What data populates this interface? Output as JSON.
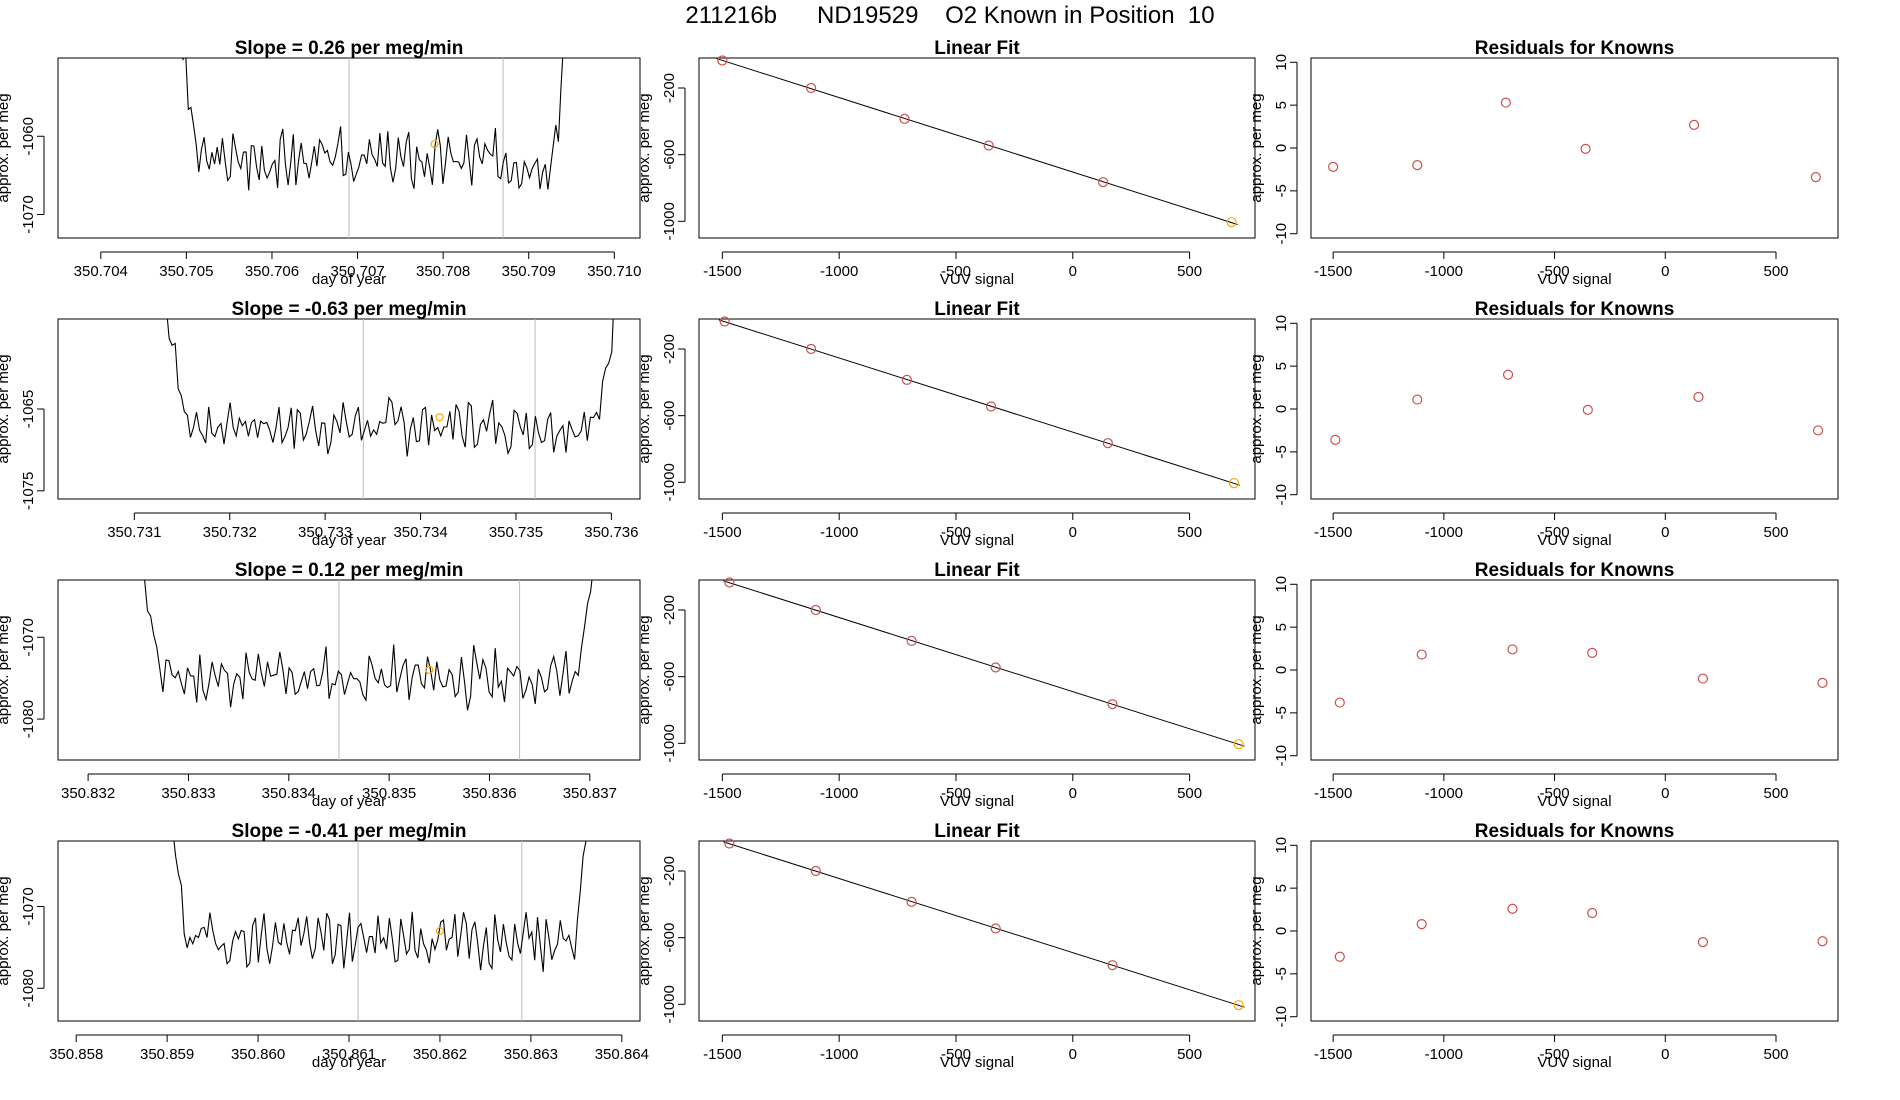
{
  "page": {
    "title": "211216b      ND19529    O2 Known in Position  10"
  },
  "chart_data": [
    {
      "type": "line",
      "title": "Slope =  0.26  per meg/min",
      "xlabel": "day of year",
      "ylabel": "approx. per meg",
      "xlim": [
        350.7035,
        350.7103
      ],
      "ylim": [
        -1073,
        -1050
      ],
      "xticks": [
        "350.704",
        "350.705",
        "350.706",
        "350.707",
        "350.708",
        "350.709",
        "350.710"
      ],
      "yticks": [
        "-1060",
        "-1070"
      ],
      "ytick_values": [
        -1060,
        -1070
      ],
      "start_x": 350.7049,
      "end_x": 350.7095,
      "vlines": [
        350.7069,
        350.7087
      ],
      "seed": 3,
      "base": -1063,
      "amp": 3.2,
      "spike_top": -1049,
      "marker": {
        "x": 350.7079,
        "y": -1061,
        "color": "#ffa500"
      },
      "line_color": "#000000"
    },
    {
      "type": "scatter",
      "title": "Linear Fit",
      "xlabel": "VUV signal",
      "ylabel": "approx. per meg",
      "xlim": [
        -1600,
        780
      ],
      "ylim": [
        -1100,
        -20
      ],
      "xticks": [
        "-1500",
        "-1000",
        "-500",
        "0",
        "500"
      ],
      "xtick_values": [
        -1500,
        -1000,
        -500,
        0,
        500
      ],
      "yticks": [
        "-200",
        "-600",
        "-1000"
      ],
      "ytick_values": [
        -200,
        -600,
        -1000
      ],
      "x": [
        -1500,
        -1120,
        -720,
        -360,
        130,
        680
      ],
      "y": [
        -35,
        -200,
        -385,
        -545,
        -765,
        -1005
      ],
      "point_color": "#cd4f4f",
      "last_point_color": "#ffa500",
      "fit_line": true
    },
    {
      "type": "scatter",
      "title": "Residuals for Knowns",
      "xlabel": "VUV signal",
      "ylabel": "approx. per meg",
      "xlim": [
        -1600,
        780
      ],
      "ylim": [
        -10.5,
        10.5
      ],
      "xticks": [
        "-1500",
        "-1000",
        "-500",
        "0",
        "500"
      ],
      "xtick_values": [
        -1500,
        -1000,
        -500,
        0,
        500
      ],
      "yticks": [
        "10",
        "5",
        "0",
        "-5",
        "-10"
      ],
      "ytick_values": [
        10,
        5,
        0,
        -5,
        -10
      ],
      "x": [
        -1500,
        -1120,
        -720,
        -360,
        130,
        680
      ],
      "y": [
        -2.2,
        -2.0,
        5.3,
        -0.1,
        2.7,
        -3.4
      ],
      "point_color": "#cd4f4f"
    },
    {
      "type": "line",
      "title": "Slope =  -0.63  per meg/min",
      "xlabel": "day of year",
      "ylabel": "approx. per meg",
      "xlim": [
        350.7302,
        350.7363
      ],
      "ylim": [
        -1076,
        -1054
      ],
      "xticks": [
        "350.731",
        "350.732",
        "350.733",
        "350.734",
        "350.735",
        "350.736"
      ],
      "yticks": [
        "-1065",
        "-1075"
      ],
      "ytick_values": [
        -1065,
        -1075
      ],
      "start_x": 350.7313,
      "end_x": 350.7361,
      "vlines": [
        350.7334,
        350.7352
      ],
      "seed": 7,
      "base": -1067,
      "amp": 2.8,
      "spike_top": -1053,
      "marker": {
        "x": 350.7342,
        "y": -1066,
        "color": "#ffa500"
      },
      "line_color": "#000000"
    },
    {
      "type": "scatter",
      "title": "Linear Fit",
      "xlabel": "VUV signal",
      "ylabel": "approx. per meg",
      "xlim": [
        -1600,
        780
      ],
      "ylim": [
        -1100,
        -20
      ],
      "xticks": [
        "-1500",
        "-1000",
        "-500",
        "0",
        "500"
      ],
      "xtick_values": [
        -1500,
        -1000,
        -500,
        0,
        500
      ],
      "yticks": [
        "-200",
        "-600",
        "-1000"
      ],
      "ytick_values": [
        -200,
        -600,
        -1000
      ],
      "x": [
        -1490,
        -1120,
        -710,
        -350,
        150,
        690
      ],
      "y": [
        -35,
        -200,
        -385,
        -545,
        -765,
        -1005
      ],
      "point_color": "#cd4f4f",
      "last_point_color": "#ffa500",
      "fit_line": true
    },
    {
      "type": "scatter",
      "title": "Residuals for Knowns",
      "xlabel": "VUV signal",
      "ylabel": "approx. per meg",
      "xlim": [
        -1600,
        780
      ],
      "ylim": [
        -10.5,
        10.5
      ],
      "xticks": [
        "-1500",
        "-1000",
        "-500",
        "0",
        "500"
      ],
      "xtick_values": [
        -1500,
        -1000,
        -500,
        0,
        500
      ],
      "yticks": [
        "10",
        "5",
        "0",
        "-5",
        "-10"
      ],
      "ytick_values": [
        10,
        5,
        0,
        -5,
        -10
      ],
      "x": [
        -1490,
        -1120,
        -710,
        -350,
        150,
        690
      ],
      "y": [
        -3.6,
        1.1,
        4.0,
        -0.1,
        1.4,
        -2.5
      ],
      "point_color": "#cd4f4f"
    },
    {
      "type": "line",
      "title": "Slope =  0.12  per meg/min",
      "xlabel": "day of year",
      "ylabel": "approx. per meg",
      "xlim": [
        350.8317,
        350.8375
      ],
      "ylim": [
        -1085,
        -1063
      ],
      "xticks": [
        "350.832",
        "350.833",
        "350.834",
        "350.835",
        "350.836",
        "350.837"
      ],
      "yticks": [
        "-1070",
        "-1080"
      ],
      "ytick_values": [
        -1070,
        -1080
      ],
      "start_x": 350.8325,
      "end_x": 350.8371,
      "vlines": [
        350.8345,
        350.8363
      ],
      "seed": 11,
      "base": -1075,
      "amp": 3.0,
      "spike_top": -1062,
      "marker": {
        "x": 350.8354,
        "y": -1074,
        "color": "#ffa500"
      },
      "line_color": "#000000"
    },
    {
      "type": "scatter",
      "title": "Linear Fit",
      "xlabel": "VUV signal",
      "ylabel": "approx. per meg",
      "xlim": [
        -1600,
        780
      ],
      "ylim": [
        -1100,
        -20
      ],
      "xticks": [
        "-1500",
        "-1000",
        "-500",
        "0",
        "500"
      ],
      "xtick_values": [
        -1500,
        -1000,
        -500,
        0,
        500
      ],
      "yticks": [
        "-200",
        "-600",
        "-1000"
      ],
      "ytick_values": [
        -200,
        -600,
        -1000
      ],
      "x": [
        -1470,
        -1100,
        -690,
        -330,
        170,
        710
      ],
      "y": [
        -35,
        -200,
        -385,
        -545,
        -765,
        -1005
      ],
      "point_color": "#cd4f4f",
      "last_point_color": "#ffa500",
      "fit_line": true
    },
    {
      "type": "scatter",
      "title": "Residuals for Knowns",
      "xlabel": "VUV signal",
      "ylabel": "approx. per meg",
      "xlim": [
        -1600,
        780
      ],
      "ylim": [
        -10.5,
        10.5
      ],
      "xticks": [
        "-1500",
        "-1000",
        "-500",
        "0",
        "500"
      ],
      "xtick_values": [
        -1500,
        -1000,
        -500,
        0,
        500
      ],
      "yticks": [
        "10",
        "5",
        "0",
        "-5",
        "-10"
      ],
      "ytick_values": [
        10,
        5,
        0,
        -5,
        -10
      ],
      "x": [
        -1470,
        -1100,
        -690,
        -330,
        170,
        710
      ],
      "y": [
        -3.8,
        1.8,
        2.4,
        2.0,
        -1.0,
        -1.5
      ],
      "point_color": "#cd4f4f"
    },
    {
      "type": "line",
      "title": "Slope =  -0.41  per meg/min",
      "xlabel": "day of year",
      "ylabel": "approx. per meg",
      "xlim": [
        350.8578,
        350.8642
      ],
      "ylim": [
        -1084,
        -1062
      ],
      "xticks": [
        "350.858",
        "350.859",
        "350.860",
        "350.861",
        "350.862",
        "350.863",
        "350.864"
      ],
      "yticks": [
        "-1070",
        "-1080"
      ],
      "ytick_values": [
        -1070,
        -1080
      ],
      "start_x": 350.859,
      "end_x": 350.8637,
      "vlines": [
        350.8611,
        350.8629
      ],
      "seed": 19,
      "base": -1074,
      "amp": 3.0,
      "spike_top": -1061,
      "marker": {
        "x": 350.862,
        "y": -1073,
        "color": "#ffa500"
      },
      "line_color": "#000000"
    },
    {
      "type": "scatter",
      "title": "Linear Fit",
      "xlabel": "VUV signal",
      "ylabel": "approx. per meg",
      "xlim": [
        -1600,
        780
      ],
      "ylim": [
        -1100,
        -20
      ],
      "xticks": [
        "-1500",
        "-1000",
        "-500",
        "0",
        "500"
      ],
      "xtick_values": [
        -1500,
        -1000,
        -500,
        0,
        500
      ],
      "yticks": [
        "-200",
        "-600",
        "-1000"
      ],
      "ytick_values": [
        -200,
        -600,
        -1000
      ],
      "x": [
        -1470,
        -1100,
        -690,
        -330,
        170,
        710
      ],
      "y": [
        -35,
        -200,
        -385,
        -545,
        -765,
        -1005
      ],
      "point_color": "#cd4f4f",
      "last_point_color": "#ffa500",
      "fit_line": true
    },
    {
      "type": "scatter",
      "title": "Residuals for Knowns",
      "xlabel": "VUV signal",
      "ylabel": "approx. per meg",
      "xlim": [
        -1600,
        780
      ],
      "ylim": [
        -10.5,
        10.5
      ],
      "xticks": [
        "-1500",
        "-1000",
        "-500",
        "0",
        "500"
      ],
      "xtick_values": [
        -1500,
        -1000,
        -500,
        0,
        500
      ],
      "yticks": [
        "10",
        "5",
        "0",
        "-5",
        "-10"
      ],
      "ytick_values": [
        10,
        5,
        0,
        -5,
        -10
      ],
      "x": [
        -1470,
        -1100,
        -690,
        -330,
        170,
        710
      ],
      "y": [
        -3.0,
        0.8,
        2.6,
        2.1,
        -1.3,
        -1.2
      ],
      "point_color": "#cd4f4f"
    }
  ]
}
